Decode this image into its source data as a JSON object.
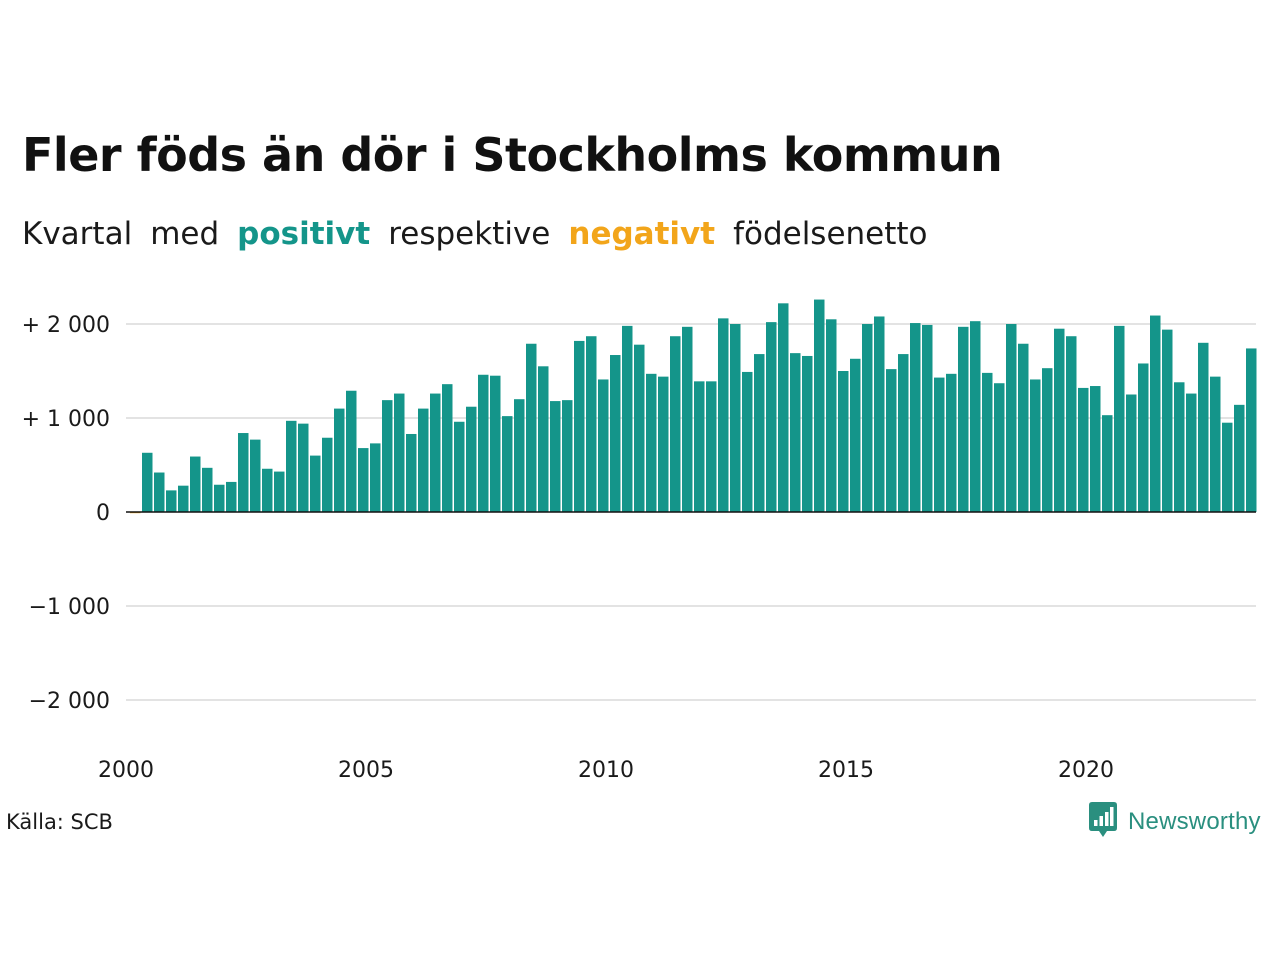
{
  "title": "Fler föds än dör i Stockholms kommun",
  "subtitle": {
    "part1": "Kvartal",
    "part2": "med",
    "positive": "positivt",
    "part3": "respektive",
    "negative": "negativt",
    "part4": "födelsenetto"
  },
  "source": "Källa: SCB",
  "brand": {
    "name": "Newsworthy",
    "icon": "newsworthy-logo-icon"
  },
  "colors": {
    "positive": "#14958a",
    "negative": "#f2a51a",
    "grid": "#e3e3e3",
    "zero_line": "#111111"
  },
  "chart_data": {
    "type": "bar",
    "title": "Fler föds än dör i Stockholms kommun",
    "subtitle": "Kvartal med positivt respektive negativt födelsenetto",
    "xlabel": "",
    "ylabel": "",
    "ylim": [
      -2400,
      2400
    ],
    "grid": true,
    "y_ticks": [
      2000,
      1000,
      0,
      -1000,
      -2000
    ],
    "y_tick_labels": [
      "+ 2 000",
      "+ 1 000",
      "0",
      "−1 000",
      "−2 000"
    ],
    "x_ticks": [
      2000,
      2005,
      2010,
      2015,
      2020
    ],
    "x_tick_labels": [
      "2000",
      "2005",
      "2010",
      "2015",
      "2020"
    ],
    "x_start_year": 2000,
    "x_step_per_year": 4,
    "series": [
      {
        "values": [
          -10,
          630,
          420,
          230,
          280,
          590,
          470,
          290,
          320,
          840,
          770,
          460,
          430,
          970,
          940,
          600,
          790,
          1100,
          1290,
          680,
          730,
          1190,
          1260,
          830,
          1100,
          1260,
          1360,
          960,
          1120,
          1460,
          1450,
          1020,
          1200,
          1790,
          1550,
          1180,
          1190,
          1820,
          1870,
          1410,
          1670,
          1980,
          1780,
          1470,
          1440,
          1870,
          1970,
          1390,
          1390,
          2060,
          2000,
          1490,
          1680,
          2020,
          2220,
          1690,
          1660,
          2260,
          2050,
          1500,
          1630,
          2000,
          2080,
          1520,
          1680,
          2010,
          1990,
          1430,
          1470,
          1970,
          2030,
          1480,
          1370,
          2000,
          1790,
          1410,
          1530,
          1950,
          1870,
          1320,
          1340,
          1030,
          1980,
          1250,
          1580,
          2090,
          1940,
          1380,
          1260,
          1800,
          1440,
          950,
          1140,
          1740
        ]
      }
    ]
  }
}
